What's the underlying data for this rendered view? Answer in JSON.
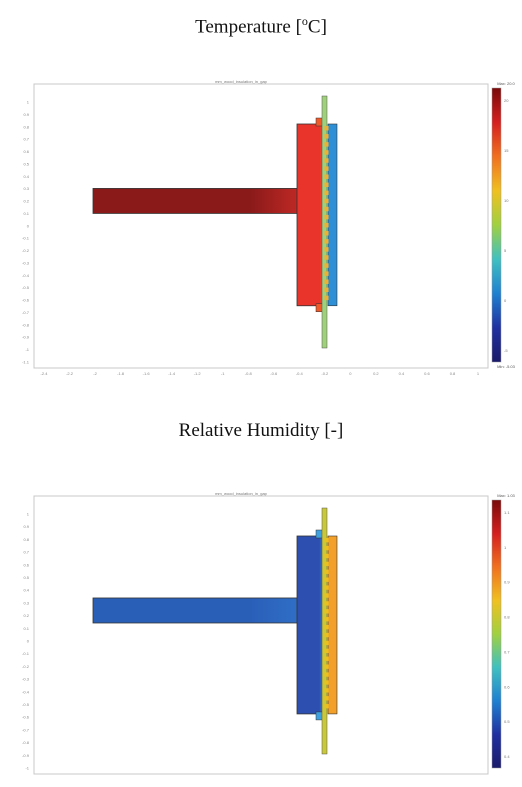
{
  "captions": {
    "temperature_prefix": "Temperature [",
    "temperature_sup": "o",
    "temperature_suffix": "C]",
    "humidity": "Relative Humidity [-]"
  },
  "panels": [
    {
      "id": "temperature",
      "plot_title": "mm_wood_insulation_in_gap",
      "legend_max": "Max: 20.0",
      "legend_min": "Min: -5.03",
      "legend_ticks": [
        "20",
        "15",
        "10",
        "5",
        "0",
        "-5"
      ],
      "y_ticks": [
        "1",
        "0.9",
        "0.8",
        "0.7",
        "0.6",
        "0.5",
        "0.4",
        "0.3",
        "0.2",
        "0.1",
        "0",
        "-0.1",
        "-0.2",
        "-0.3",
        "-0.4",
        "-0.5",
        "-0.6",
        "-0.7",
        "-0.8",
        "-0.9",
        "-1",
        "-1.1"
      ],
      "x_ticks": [
        "-2.4",
        "-2.2",
        "-2",
        "-1.8",
        "-1.6",
        "-1.4",
        "-1.2",
        "-1",
        "-0.8",
        "-0.6",
        "-0.4",
        "-0.2",
        "0",
        "0.2",
        "0.4",
        "0.6",
        "0.8",
        "1"
      ],
      "colors": {
        "beam": "#8a1a1a",
        "beam_end": "#c42a25",
        "block": "#e8342a",
        "block_edge": "#f05a2a",
        "inner_layer": "#2f8fd6",
        "facade": "#9fd07a",
        "stud": "#f2b030"
      }
    },
    {
      "id": "humidity",
      "plot_title": "mm_wood_insulation_in_gap",
      "legend_max": "Max: 1.03",
      "legend_min": "",
      "legend_ticks": [
        "1.1",
        "1",
        "0.9",
        "0.8",
        "0.7",
        "0.6",
        "0.5",
        "0.4"
      ],
      "y_ticks": [
        "1",
        "0.9",
        "0.8",
        "0.7",
        "0.6",
        "0.5",
        "0.4",
        "0.3",
        "0.2",
        "0.1",
        "0",
        "-0.1",
        "-0.2",
        "-0.3",
        "-0.4",
        "-0.5",
        "-0.6",
        "-0.7",
        "-0.8",
        "-0.9",
        "-1"
      ],
      "x_ticks": [],
      "colors": {
        "beam": "#2a5fb8",
        "beam_end": "#3070c8",
        "block": "#2c4fb0",
        "block_edge": "#3fa0e0",
        "inner_layer": "#f2a02a",
        "facade": "#c8c83a",
        "stud": "#e8c020"
      }
    }
  ]
}
